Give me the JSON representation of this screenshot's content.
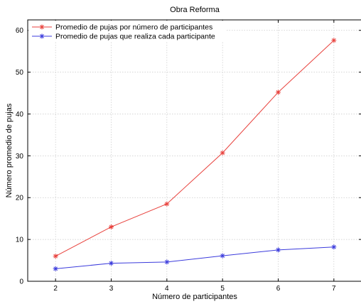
{
  "chart_data": {
    "type": "line",
    "title": "Obra Reforma",
    "xlabel": "Número de participantes",
    "ylabel": "Número promedio de pujas",
    "x": [
      2,
      3,
      4,
      5,
      6,
      7
    ],
    "xlim": [
      1.5,
      7.5
    ],
    "ylim": [
      0,
      62.5
    ],
    "xticks": [
      "2",
      "3",
      "4",
      "5",
      "6",
      "7"
    ],
    "yticks": [
      "0",
      "10",
      "20",
      "30",
      "40",
      "50",
      "60"
    ],
    "grid": true,
    "legend_position": "top-left",
    "marker": "asterisk",
    "series": [
      {
        "name": "Promedio de pujas por número de participantes",
        "color": "#e8413c",
        "values": [
          6,
          13,
          18.5,
          30.7,
          45.2,
          57.6
        ]
      },
      {
        "name": "Promedio de pujas que realiza cada participante",
        "color": "#3b3bdc",
        "values": [
          3,
          4.3,
          4.6,
          6.1,
          7.5,
          8.2
        ]
      }
    ]
  }
}
